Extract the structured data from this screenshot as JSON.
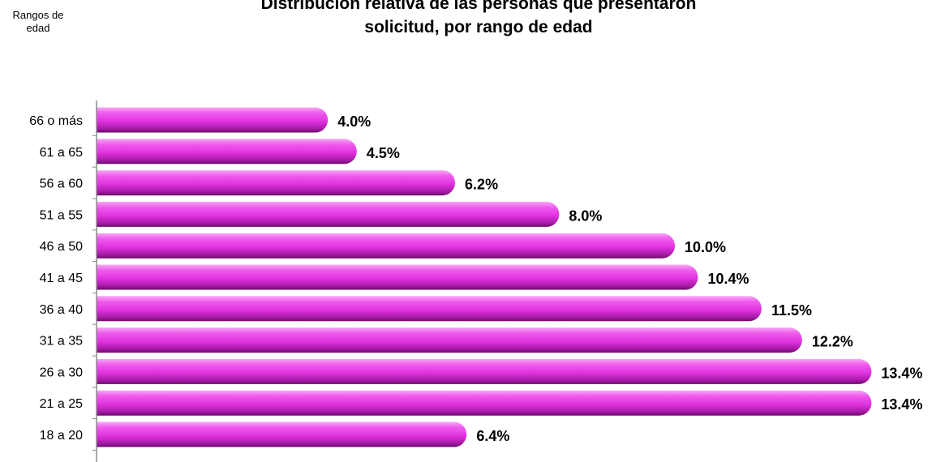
{
  "chart_data": {
    "type": "bar",
    "orientation": "horizontal",
    "title": "Distribución relativa de las personas que presentaron\nsolicitud, por rango de edad",
    "ylabel": "Rangos de\nedad",
    "xlabel": "",
    "categories": [
      "66 o más",
      "61 a 65",
      "56 a 60",
      "51 a 55",
      "46 a 50",
      "41 a 45",
      "36 a 40",
      "31 a 35",
      "26 a 30",
      "21 a 25",
      "18 a 20"
    ],
    "values": [
      4.0,
      4.5,
      6.2,
      8.0,
      10.0,
      10.4,
      11.5,
      12.2,
      13.4,
      13.4,
      6.4
    ],
    "data_labels": [
      "4.0%",
      "4.5%",
      "6.2%",
      "8.0%",
      "10.0%",
      "10.4%",
      "11.5%",
      "12.2%",
      "13.4%",
      "13.4%",
      "6.4%"
    ],
    "unit": "%",
    "grid": false,
    "legend": "none",
    "bar_color": "#e838e8"
  }
}
